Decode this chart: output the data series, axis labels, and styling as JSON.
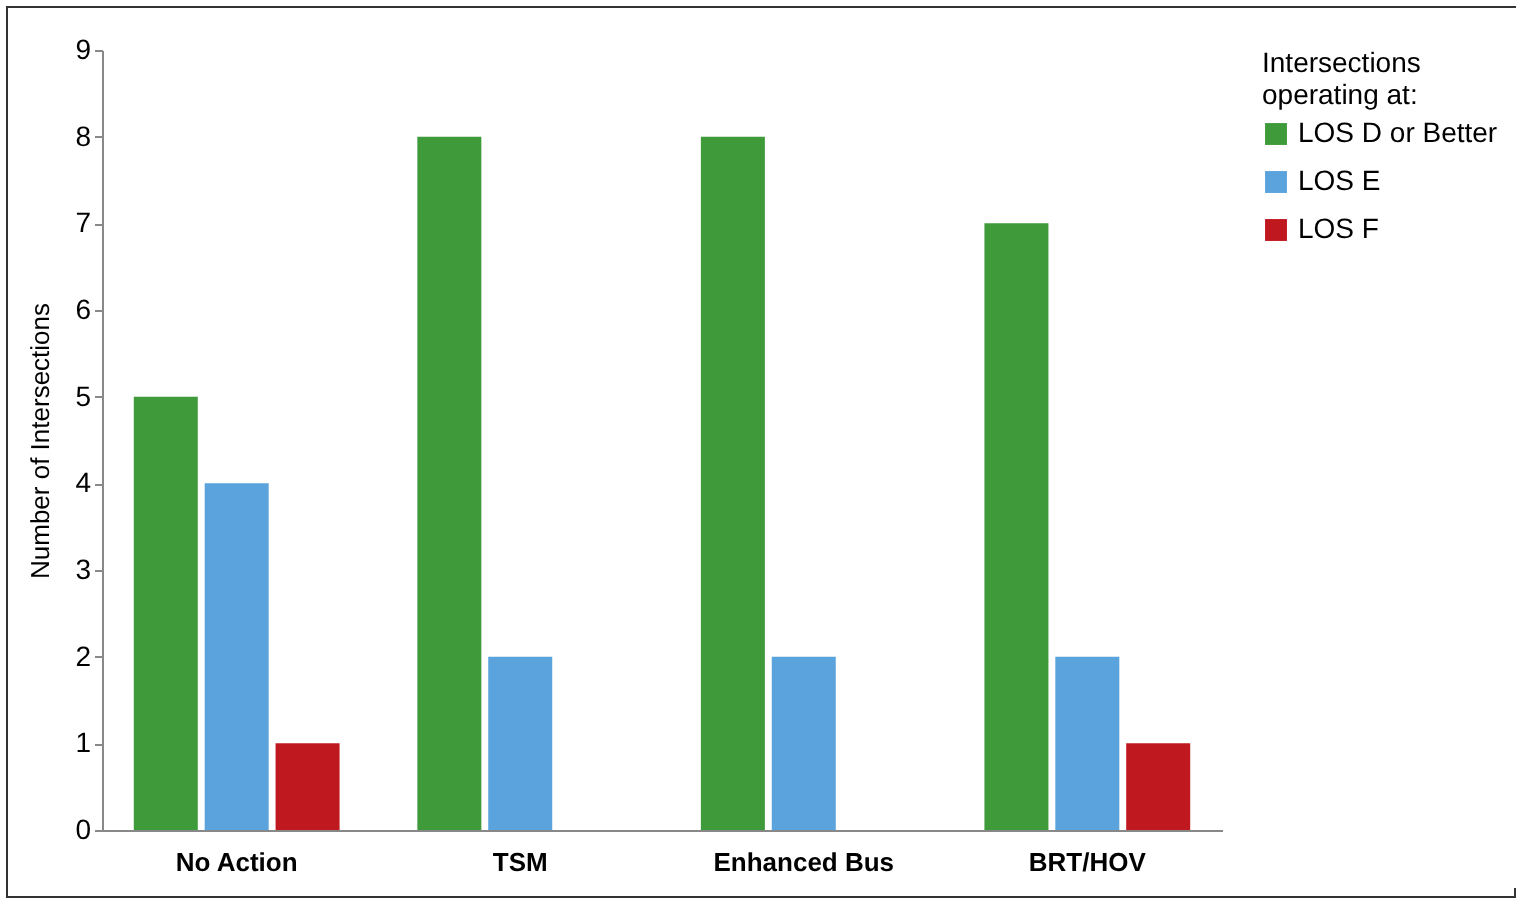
{
  "chart_data": {
    "type": "bar",
    "ylabel": "Number of Intersections",
    "legend_title": "Intersections operating at:",
    "categories": [
      "No Action",
      "TSM",
      "Enhanced Bus",
      "BRT/HOV"
    ],
    "series": [
      {
        "name": "LOS D or Better",
        "color": "#3f9a3a",
        "values": [
          5,
          8,
          8,
          7
        ]
      },
      {
        "name": "LOS E",
        "color": "#5aa3dc",
        "values": [
          4,
          2,
          2,
          2
        ]
      },
      {
        "name": "LOS F",
        "color": "#c0181f",
        "values": [
          1,
          0,
          0,
          1
        ]
      }
    ],
    "ylim": [
      0,
      9
    ],
    "yticks": [
      0,
      1,
      2,
      3,
      4,
      5,
      6,
      7,
      8,
      9
    ],
    "grid": false,
    "legend": "right"
  }
}
